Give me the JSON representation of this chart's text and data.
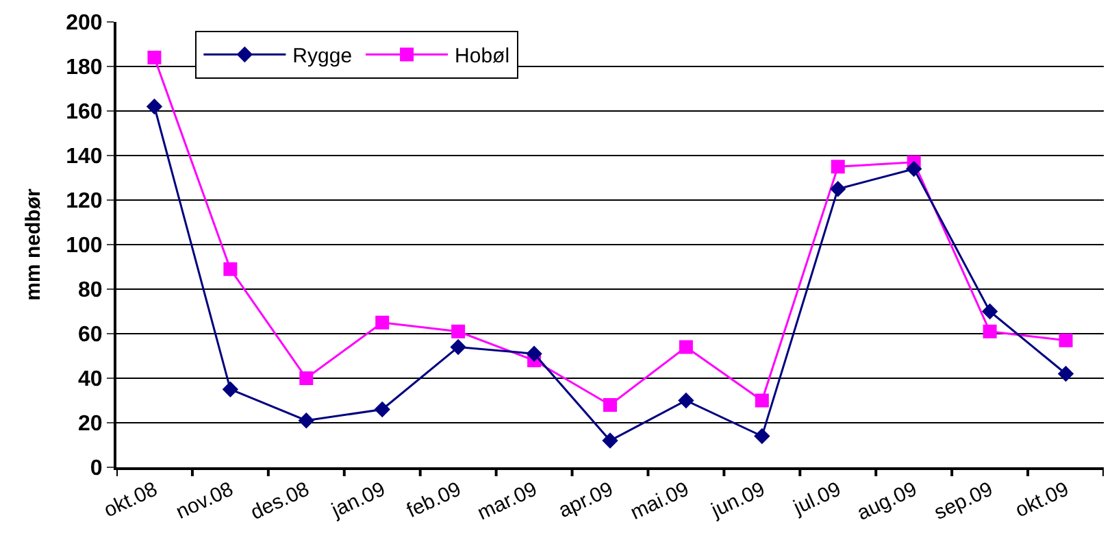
{
  "chart_data": {
    "type": "line",
    "ylabel": "mm nedbør",
    "categories": [
      "okt.08",
      "nov.08",
      "des.08",
      "jan.09",
      "feb.09",
      "mar.09",
      "apr.09",
      "mai.09",
      "jun.09",
      "jul.09",
      "aug.09",
      "sep.09",
      "okt.09"
    ],
    "series": [
      {
        "name": "Rygge",
        "color": "#000080",
        "marker": "diamond",
        "values": [
          162,
          35,
          21,
          26,
          54,
          51,
          12,
          30,
          14,
          125,
          134,
          70,
          42
        ]
      },
      {
        "name": "Hobøl",
        "color": "#ff00ff",
        "marker": "square",
        "values": [
          184,
          89,
          40,
          65,
          61,
          48,
          28,
          54,
          30,
          135,
          137,
          61,
          57
        ]
      }
    ],
    "ylim": [
      0,
      200
    ],
    "yticks": [
      0,
      20,
      40,
      60,
      80,
      100,
      120,
      140,
      160,
      180,
      200
    ],
    "grid": "y",
    "legend": "top left",
    "line_style": "solid"
  }
}
